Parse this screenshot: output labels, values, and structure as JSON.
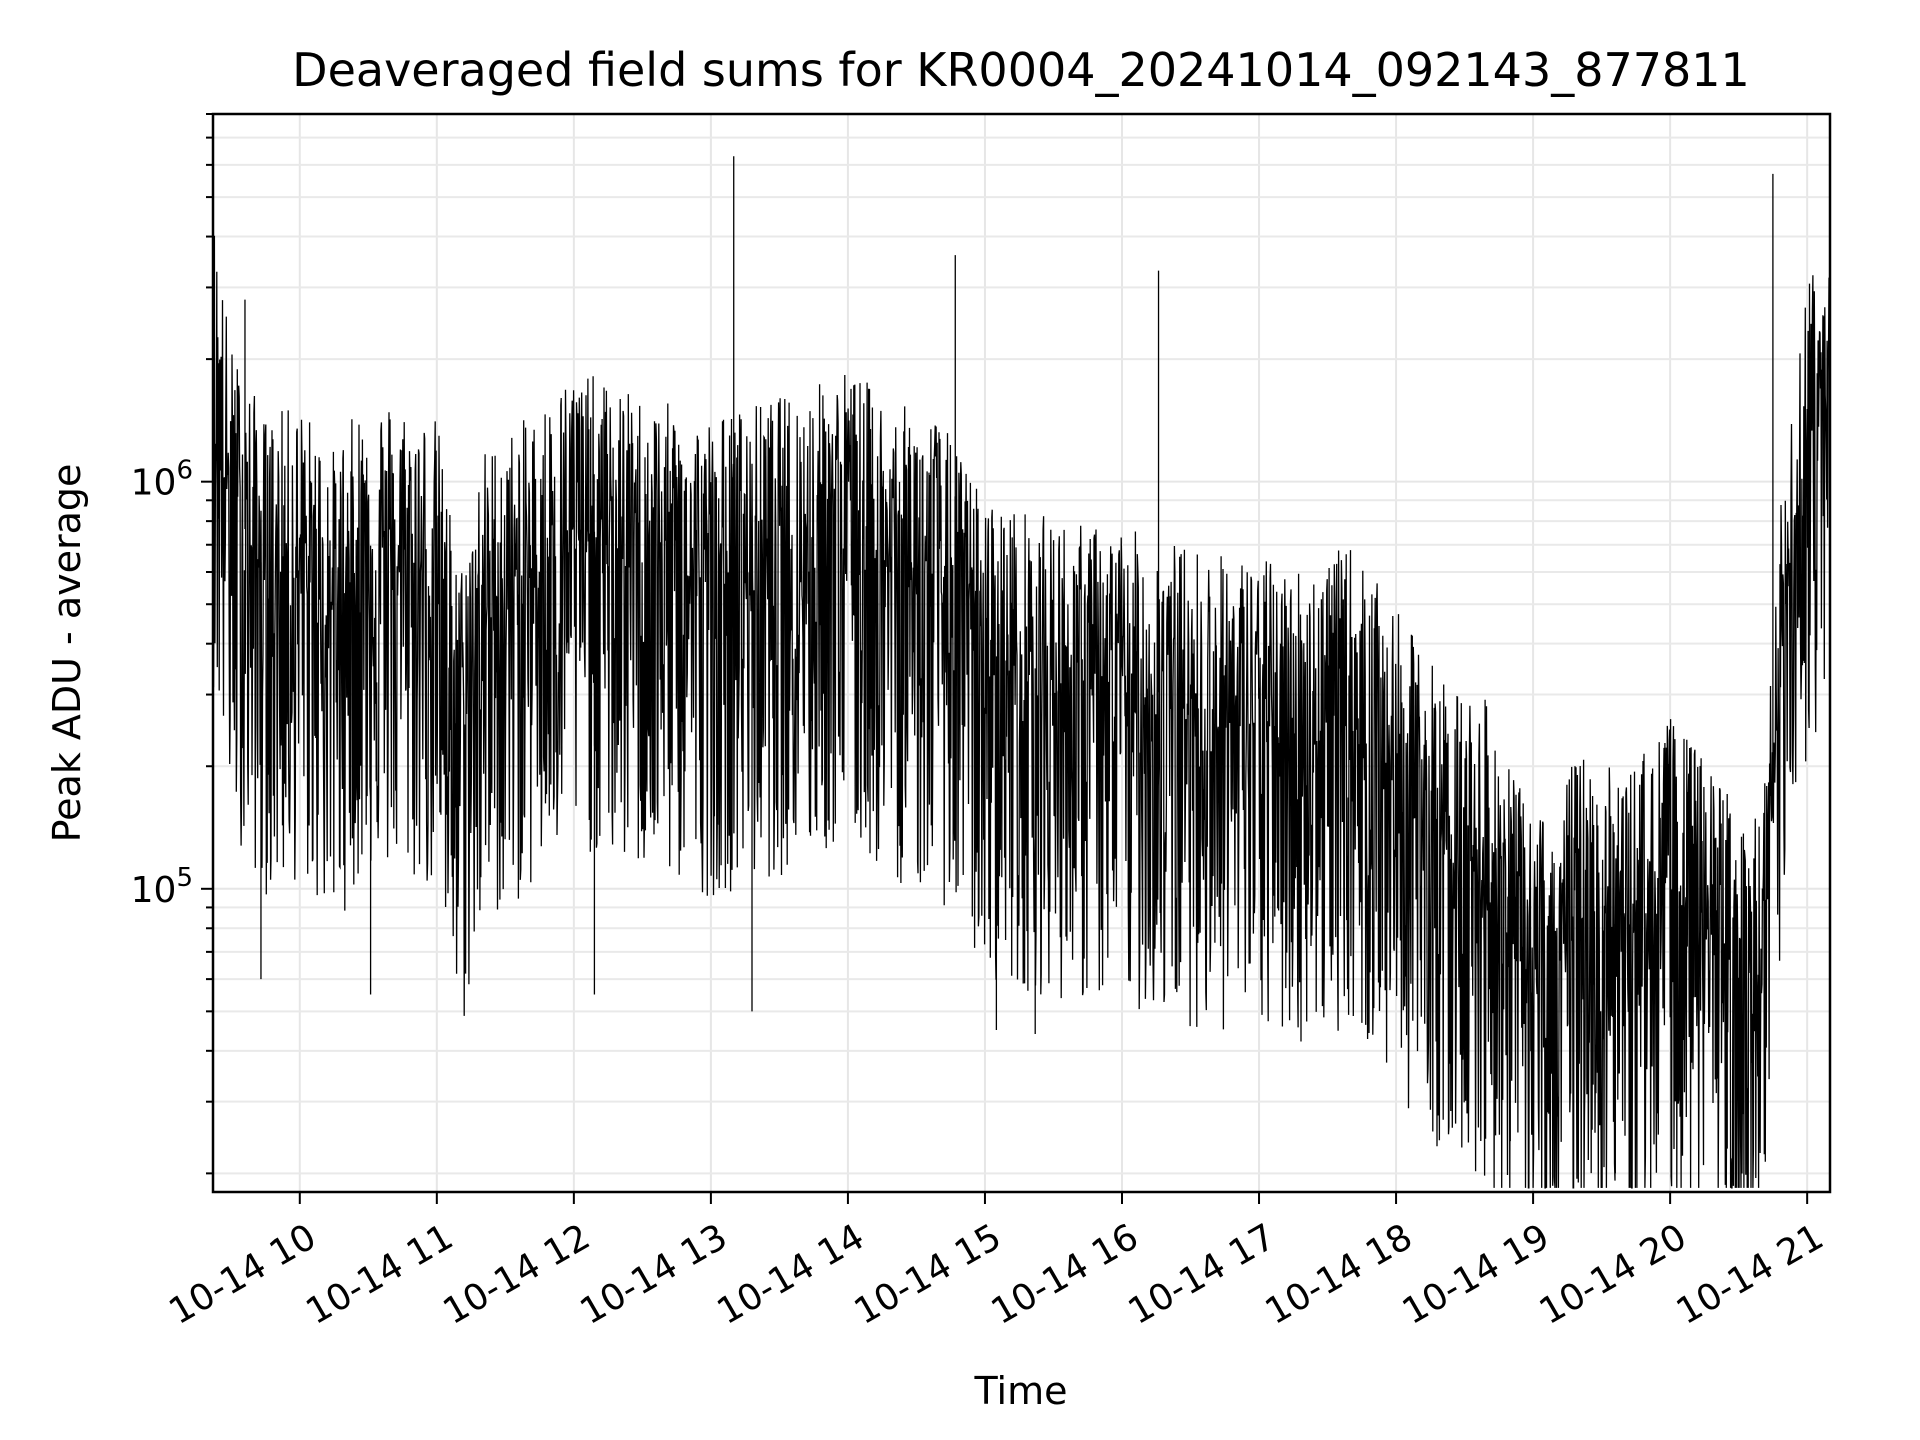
{
  "chart_data": {
    "type": "line",
    "title": "Deaveraged field sums for KR0004_20241014_092143_877811",
    "xlabel": "Time",
    "ylabel": "Peak ADU - average",
    "yscale": "log",
    "grid": true,
    "grid_minor": true,
    "xlim": [
      "2024-10-14 09:22",
      "2024-10-14 21:10"
    ],
    "ylim": [
      18000,
      8000000
    ],
    "x_ticks": [
      "10-14 10",
      "10-14 11",
      "10-14 12",
      "10-14 13",
      "10-14 14",
      "10-14 15",
      "10-14 16",
      "10-14 17",
      "10-14 18",
      "10-14 19",
      "10-14 20",
      "10-14 21"
    ],
    "y_ticks": [
      {
        "base": "10",
        "exp": "5",
        "value": 100000
      },
      {
        "base": "10",
        "exp": "6",
        "value": 1000000
      }
    ],
    "series_color": "#000000",
    "series": [
      {
        "x": [
          "2024-10-14 09:22",
          "2024-10-14 09:30",
          "2024-10-14 09:45",
          "2024-10-14 10:00",
          "2024-10-14 10:15",
          "2024-10-14 10:30",
          "2024-10-14 10:45",
          "2024-10-14 11:00",
          "2024-10-14 11:10",
          "2024-10-14 11:20",
          "2024-10-14 11:40",
          "2024-10-14 12:00",
          "2024-10-14 12:20",
          "2024-10-14 12:40",
          "2024-10-14 13:00",
          "2024-10-14 13:20",
          "2024-10-14 13:40",
          "2024-10-14 14:00",
          "2024-10-14 14:20",
          "2024-10-14 14:40",
          "2024-10-14 15:00",
          "2024-10-14 15:20",
          "2024-10-14 15:40",
          "2024-10-14 16:00",
          "2024-10-14 16:20",
          "2024-10-14 16:40",
          "2024-10-14 17:00",
          "2024-10-14 17:20",
          "2024-10-14 17:40",
          "2024-10-14 18:00",
          "2024-10-14 18:20",
          "2024-10-14 18:40",
          "2024-10-14 19:00",
          "2024-10-14 19:20",
          "2024-10-14 19:40",
          "2024-10-14 20:00",
          "2024-10-14 20:20",
          "2024-10-14 20:40",
          "2024-10-14 20:50",
          "2024-10-14 21:00",
          "2024-10-14 21:10"
        ],
        "y": [
          2000000,
          900000,
          600000,
          650000,
          500000,
          700000,
          650000,
          600000,
          250000,
          500000,
          600000,
          800000,
          700000,
          650000,
          600000,
          650000,
          700000,
          800000,
          650000,
          600000,
          380000,
          350000,
          330000,
          320000,
          300000,
          280000,
          270000,
          260000,
          290000,
          200000,
          140000,
          120000,
          60000,
          90000,
          80000,
          110000,
          80000,
          60000,
          500000,
          1300000,
          1900000
        ]
      }
    ],
    "spikes": [
      {
        "x": "2024-10-14 09:36",
        "y": 2800000
      },
      {
        "x": "2024-10-14 13:10",
        "y": 6300000
      },
      {
        "x": "2024-10-14 14:47",
        "y": 3600000
      },
      {
        "x": "2024-10-14 16:16",
        "y": 3300000
      },
      {
        "x": "2024-10-14 20:45",
        "y": 5700000
      }
    ],
    "dips": [
      {
        "x": "2024-10-14 09:43",
        "y": 60000
      },
      {
        "x": "2024-10-14 10:31",
        "y": 55000
      },
      {
        "x": "2024-10-14 12:09",
        "y": 55000
      },
      {
        "x": "2024-10-14 13:18",
        "y": 50000
      },
      {
        "x": "2024-10-14 15:05",
        "y": 45000
      },
      {
        "x": "2024-10-14 15:22",
        "y": 44000
      },
      {
        "x": "2024-10-14 18:50",
        "y": 24000
      },
      {
        "x": "2024-10-14 19:36",
        "y": 20000
      },
      {
        "x": "2024-10-14 20:25",
        "y": 23000
      }
    ]
  }
}
